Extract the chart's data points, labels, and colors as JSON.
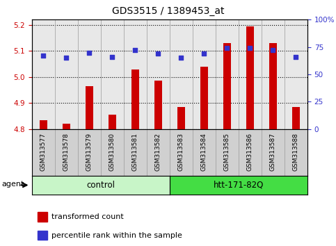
{
  "title": "GDS3515 / 1389453_at",
  "samples": [
    "GSM313577",
    "GSM313578",
    "GSM313579",
    "GSM313580",
    "GSM313581",
    "GSM313582",
    "GSM313583",
    "GSM313584",
    "GSM313585",
    "GSM313586",
    "GSM313587",
    "GSM313588"
  ],
  "bar_values": [
    4.835,
    4.822,
    4.965,
    4.855,
    5.03,
    4.985,
    4.885,
    5.04,
    5.13,
    5.195,
    5.13,
    4.885
  ],
  "dot_values": [
    67,
    65,
    70,
    66,
    72,
    69,
    65,
    69,
    74,
    74,
    72,
    66
  ],
  "bar_bottom": 4.8,
  "ylim": [
    4.8,
    5.22
  ],
  "yticks": [
    4.8,
    4.9,
    5.0,
    5.1,
    5.2
  ],
  "y2lim": [
    0,
    100
  ],
  "y2ticks": [
    0,
    25,
    50,
    75,
    100
  ],
  "bar_color": "#cc0000",
  "dot_color": "#3333cc",
  "grid_color": "#000000",
  "plot_bg": "#e8e8e8",
  "tick_bg": "#d0d0d0",
  "control_bg": "#c8f5c8",
  "htt_bg": "#44dd44",
  "fig_bg": "#ffffff",
  "control_label": "control",
  "htt_label": "htt-171-82Q",
  "agent_label": "agent",
  "legend_bar": "transformed count",
  "legend_dot": "percentile rank within the sample",
  "n_control": 6,
  "n_htt": 6,
  "left_axis_color": "#cc0000",
  "right_axis_color": "#3333cc"
}
